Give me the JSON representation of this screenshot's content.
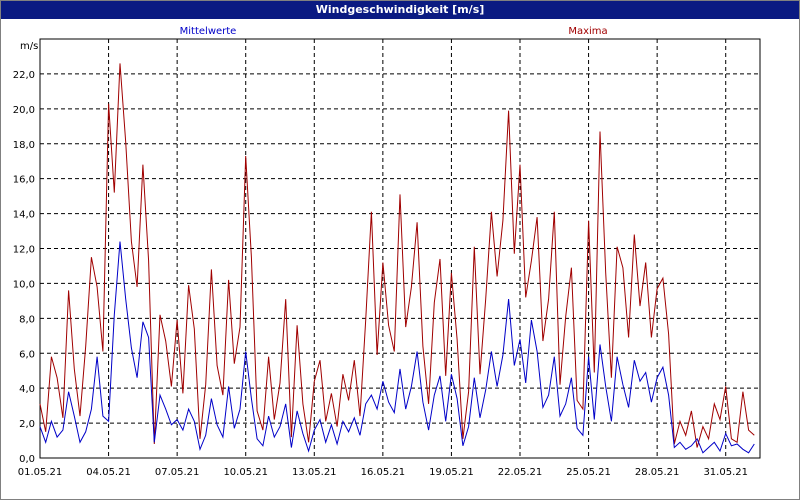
{
  "window": {
    "title": "Windgeschwindigkeit [m/s]"
  },
  "colors": {
    "title_bar": "#0a1a82",
    "mean_series": "#0000c8",
    "max_series": "#a00000"
  },
  "chart_data": {
    "type": "line",
    "title": "Windgeschwindigkeit [m/s]",
    "ylabel": "m/s",
    "xlabel": "",
    "ylim": [
      0,
      24
    ],
    "xlim": [
      0,
      31.5
    ],
    "grid": true,
    "legend": [
      "Mittelwerte",
      "Maxima"
    ],
    "x_ticks": [
      "01.05.21",
      "04.05.21",
      "07.05.21",
      "10.05.21",
      "13.05.21",
      "16.05.21",
      "19.05.21",
      "22.05.21",
      "25.05.21",
      "28.05.21",
      "31.05.21"
    ],
    "y_ticks": [
      "0,0",
      "2,0",
      "4,0",
      "6,0",
      "8,0",
      "10,0",
      "12,0",
      "14,0",
      "16,0",
      "18,0",
      "20,0",
      "22,0"
    ],
    "series": [
      {
        "name": "Mittelwerte",
        "x": [
          0,
          0.25,
          0.5,
          0.75,
          1,
          1.25,
          1.5,
          1.75,
          2,
          2.25,
          2.5,
          2.75,
          3,
          3.25,
          3.5,
          3.75,
          4,
          4.25,
          4.5,
          4.75,
          5,
          5.25,
          5.5,
          5.75,
          6,
          6.25,
          6.5,
          6.75,
          7,
          7.25,
          7.5,
          7.75,
          8,
          8.25,
          8.5,
          8.75,
          9,
          9.25,
          9.5,
          9.75,
          10,
          10.25,
          10.5,
          10.75,
          11,
          11.25,
          11.5,
          11.75,
          12,
          12.25,
          12.5,
          12.75,
          13,
          13.25,
          13.5,
          13.75,
          14,
          14.25,
          14.5,
          14.75,
          15,
          15.25,
          15.5,
          15.75,
          16,
          16.25,
          16.5,
          16.75,
          17,
          17.25,
          17.5,
          17.75,
          18,
          18.25,
          18.5,
          18.75,
          19,
          19.25,
          19.5,
          19.75,
          20,
          20.25,
          20.5,
          20.75,
          21,
          21.25,
          21.5,
          21.75,
          22,
          22.25,
          22.5,
          22.75,
          23,
          23.25,
          23.5,
          23.75,
          24,
          24.25,
          24.5,
          24.75,
          25,
          25.25,
          25.5,
          25.75,
          26,
          26.25,
          26.5,
          26.75,
          27,
          27.25,
          27.5,
          27.75,
          28,
          28.25,
          28.5,
          28.75,
          29,
          29.25,
          29.5,
          29.75,
          30,
          30.25,
          30.5,
          30.75,
          31,
          31.25
        ],
        "values": [
          1.8,
          0.9,
          2.1,
          1.2,
          1.6,
          3.8,
          2.4,
          0.9,
          1.5,
          2.8,
          5.8,
          2.4,
          2.1,
          8.2,
          12.4,
          9.1,
          6.3,
          4.6,
          7.8,
          6.9,
          0.9,
          3.6,
          2.8,
          1.9,
          2.2,
          1.6,
          2.8,
          2.1,
          0.5,
          1.3,
          3.4,
          1.9,
          1.2,
          4.1,
          1.7,
          2.8,
          6.1,
          3.4,
          1.1,
          0.7,
          2.4,
          1.2,
          1.8,
          3.1,
          0.6,
          2.7,
          1.4,
          0.4,
          1.6,
          2.2,
          0.9,
          1.9,
          0.8,
          2.1,
          1.5,
          2.3,
          1.3,
          3.1,
          3.6,
          2.8,
          4.4,
          3.2,
          2.6,
          5.1,
          2.8,
          4.1,
          6.1,
          3.2,
          1.6,
          3.6,
          4.7,
          2.1,
          4.8,
          3.4,
          0.7,
          1.8,
          4.6,
          2.3,
          3.9,
          6.1,
          4.1,
          5.9,
          9.1,
          5.3,
          6.8,
          4.3,
          7.9,
          6.1,
          2.9,
          3.6,
          5.8,
          2.4,
          3.1,
          4.6,
          1.7,
          1.3,
          5.8,
          2.2,
          6.5,
          4.1,
          2.1,
          5.8,
          4.2,
          2.9,
          5.6,
          4.4,
          4.9,
          3.2,
          4.6,
          5.2,
          3.6,
          0.6,
          0.9,
          0.5,
          0.7,
          1.1,
          0.3,
          0.6,
          0.9,
          0.4,
          1.4,
          0.7,
          0.8,
          0.5,
          0.3,
          0.8
        ]
      },
      {
        "name": "Maxima",
        "x": [
          0,
          0.25,
          0.5,
          0.75,
          1,
          1.25,
          1.5,
          1.75,
          2,
          2.25,
          2.5,
          2.75,
          3,
          3.25,
          3.5,
          3.75,
          4,
          4.25,
          4.5,
          4.75,
          5,
          5.25,
          5.5,
          5.75,
          6,
          6.25,
          6.5,
          6.75,
          7,
          7.25,
          7.5,
          7.75,
          8,
          8.25,
          8.5,
          8.75,
          9,
          9.25,
          9.5,
          9.75,
          10,
          10.25,
          10.5,
          10.75,
          11,
          11.25,
          11.5,
          11.75,
          12,
          12.25,
          12.5,
          12.75,
          13,
          13.25,
          13.5,
          13.75,
          14,
          14.25,
          14.5,
          14.75,
          15,
          15.25,
          15.5,
          15.75,
          16,
          16.25,
          16.5,
          16.75,
          17,
          17.25,
          17.5,
          17.75,
          18,
          18.25,
          18.5,
          18.75,
          19,
          19.25,
          19.5,
          19.75,
          20,
          20.25,
          20.5,
          20.75,
          21,
          21.25,
          21.5,
          21.75,
          22,
          22.25,
          22.5,
          22.75,
          23,
          23.25,
          23.5,
          23.75,
          24,
          24.25,
          24.5,
          24.75,
          25,
          25.25,
          25.5,
          25.75,
          26,
          26.25,
          26.5,
          26.75,
          27,
          27.25,
          27.5,
          27.75,
          28,
          28.25,
          28.5,
          28.75,
          29,
          29.25,
          29.5,
          29.75,
          30,
          30.25,
          30.5,
          30.75,
          31,
          31.25
        ],
        "values": [
          3.1,
          1.5,
          5.8,
          4.6,
          2.3,
          9.6,
          5.1,
          2.4,
          6.4,
          11.5,
          9.8,
          6.1,
          20.3,
          15.2,
          22.6,
          18.1,
          12.4,
          9.8,
          16.8,
          11.3,
          0.8,
          8.2,
          6.7,
          4.1,
          7.9,
          3.7,
          9.9,
          7.4,
          1.1,
          4.2,
          10.8,
          5.3,
          3.6,
          10.2,
          5.4,
          7.5,
          17.3,
          11.5,
          2.7,
          1.6,
          5.8,
          2.2,
          4.3,
          9.1,
          1.2,
          7.6,
          3.1,
          0.9,
          4.4,
          5.6,
          2.1,
          3.7,
          1.8,
          4.8,
          3.3,
          5.6,
          2.4,
          7.9,
          14.1,
          5.9,
          11.2,
          7.6,
          6.1,
          15.1,
          7.5,
          9.8,
          13.5,
          6.4,
          3.1,
          8.9,
          11.4,
          4.7,
          10.6,
          6.8,
          1.1,
          3.8,
          12.1,
          4.8,
          9.1,
          14.1,
          10.4,
          13.6,
          19.9,
          11.7,
          16.8,
          9.2,
          11.3,
          13.8,
          6.7,
          9.1,
          14.1,
          4.2,
          8.1,
          10.9,
          3.3,
          2.8,
          13.6,
          4.9,
          18.7,
          10.6,
          4.6,
          12.1,
          10.9,
          6.9,
          12.8,
          8.7,
          11.2,
          6.9,
          9.7,
          10.3,
          7.1,
          0.8,
          2.1,
          1.3,
          2.7,
          0.6,
          1.8,
          1.1,
          3.1,
          2.2,
          4.1,
          1.1,
          0.9,
          3.8,
          1.6,
          1.3
        ]
      }
    ]
  }
}
